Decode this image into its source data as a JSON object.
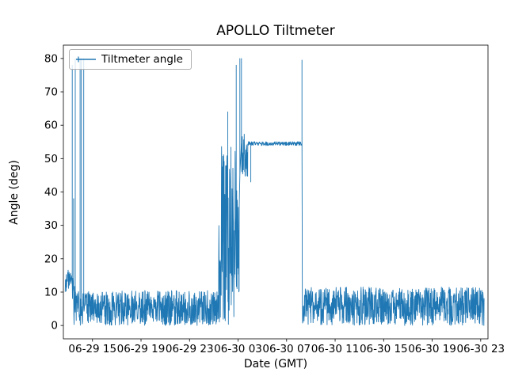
{
  "figure": {
    "title": "APOLLO Tiltmeter",
    "xlabel": "Date (GMT)",
    "ylabel": "Angle (deg)",
    "legend_label": "Tiltmeter angle"
  },
  "chart_data": {
    "type": "line",
    "title": "APOLLO Tiltmeter",
    "xlabel": "Date (GMT)",
    "ylabel": "Angle (deg)",
    "legend": [
      "Tiltmeter angle"
    ],
    "legend_position": "upper left",
    "line_color": "#1f77b4",
    "grid": false,
    "x_encoding": "hours, 0 = 06-29 00:00 GMT",
    "xlim": [
      12.6,
      47.6
    ],
    "ylim": [
      -4,
      84
    ],
    "yticks": [
      0,
      10,
      20,
      30,
      40,
      50,
      60,
      70,
      80
    ],
    "xticks": [
      {
        "value": 15,
        "label": "06-29 15"
      },
      {
        "value": 19,
        "label": "06-29 19"
      },
      {
        "value": 23,
        "label": "06-29 23"
      },
      {
        "value": 27,
        "label": "06-30 03"
      },
      {
        "value": 31,
        "label": "06-30 07"
      },
      {
        "value": 35,
        "label": "06-30 11"
      },
      {
        "value": 39,
        "label": "06-30 15"
      },
      {
        "value": 43,
        "label": "06-30 19"
      },
      {
        "value": 47,
        "label": "06-30 23"
      }
    ],
    "segments": [
      {
        "type": "noise",
        "x0": 12.75,
        "x1": 13.3,
        "low": 10,
        "high": 17,
        "dx": 0.02
      },
      {
        "type": "spike",
        "x": 13.33,
        "peak": 78,
        "base": 12
      },
      {
        "type": "noise",
        "x0": 13.35,
        "x1": 13.42,
        "low": 8,
        "high": 15,
        "dx": 0.02
      },
      {
        "type": "spike",
        "x": 13.44,
        "peak": 38,
        "base": 10
      },
      {
        "type": "noise",
        "x0": 13.46,
        "x1": 13.55,
        "low": 0,
        "high": 12,
        "dx": 0.02
      },
      {
        "type": "spike",
        "x": 13.58,
        "peak": 80,
        "base": 4
      },
      {
        "type": "noise",
        "x0": 13.6,
        "x1": 13.95,
        "low": 0,
        "high": 11,
        "dx": 0.02
      },
      {
        "type": "spike",
        "x": 13.98,
        "peak": 80,
        "base": 3
      },
      {
        "type": "noise",
        "x0": 14.0,
        "x1": 14.06,
        "low": 0,
        "high": 10,
        "dx": 0.02
      },
      {
        "type": "spike",
        "x": 14.08,
        "peak": 80,
        "base": 3
      },
      {
        "type": "noise",
        "x0": 14.1,
        "x1": 14.25,
        "low": 0,
        "high": 10,
        "dx": 0.02
      },
      {
        "type": "spike",
        "x": 14.28,
        "peak": 80,
        "base": 5
      },
      {
        "type": "noise",
        "x0": 14.3,
        "x1": 25.4,
        "low": 0,
        "high": 10.5,
        "dx": 0.02
      },
      {
        "type": "noise",
        "x0": 25.4,
        "x1": 25.55,
        "low": 0,
        "high": 30,
        "dx": 0.02
      },
      {
        "type": "noise",
        "x0": 25.55,
        "x1": 26.1,
        "low": 0,
        "high": 55,
        "dx": 0.015
      },
      {
        "type": "spike",
        "x": 26.15,
        "peak": 64,
        "base": 25
      },
      {
        "type": "noise",
        "x0": 26.17,
        "x1": 26.8,
        "low": 0,
        "high": 55,
        "dx": 0.015
      },
      {
        "type": "spike",
        "x": 26.85,
        "peak": 78,
        "base": 15
      },
      {
        "type": "noise",
        "x0": 26.87,
        "x1": 27.1,
        "low": 5,
        "high": 55,
        "dx": 0.015
      },
      {
        "type": "spike",
        "x": 27.15,
        "peak": 80,
        "base": 45
      },
      {
        "type": "spike",
        "x": 27.28,
        "peak": 80,
        "base": 55
      },
      {
        "type": "noise",
        "x0": 27.3,
        "x1": 27.55,
        "low": 45,
        "high": 58,
        "dx": 0.015
      },
      {
        "type": "noise",
        "x0": 27.55,
        "x1": 27.8,
        "low": 43,
        "high": 56,
        "dx": 0.015
      },
      {
        "type": "plateau",
        "x0": 27.8,
        "x1": 28.03,
        "level": 54.5,
        "jitter": 0.6,
        "dx": 0.02
      },
      {
        "type": "spike",
        "x": 28.05,
        "peak": 43,
        "base": 54.5
      },
      {
        "type": "plateau",
        "x0": 28.07,
        "x1": 32.2,
        "level": 54.5,
        "jitter": 0.6,
        "dx": 0.02
      },
      {
        "type": "spike",
        "x": 32.27,
        "peak": 79.5,
        "base": 54.5
      },
      {
        "type": "noise",
        "x0": 32.3,
        "x1": 47.3,
        "low": 0,
        "high": 11.5,
        "dx": 0.02
      }
    ]
  }
}
